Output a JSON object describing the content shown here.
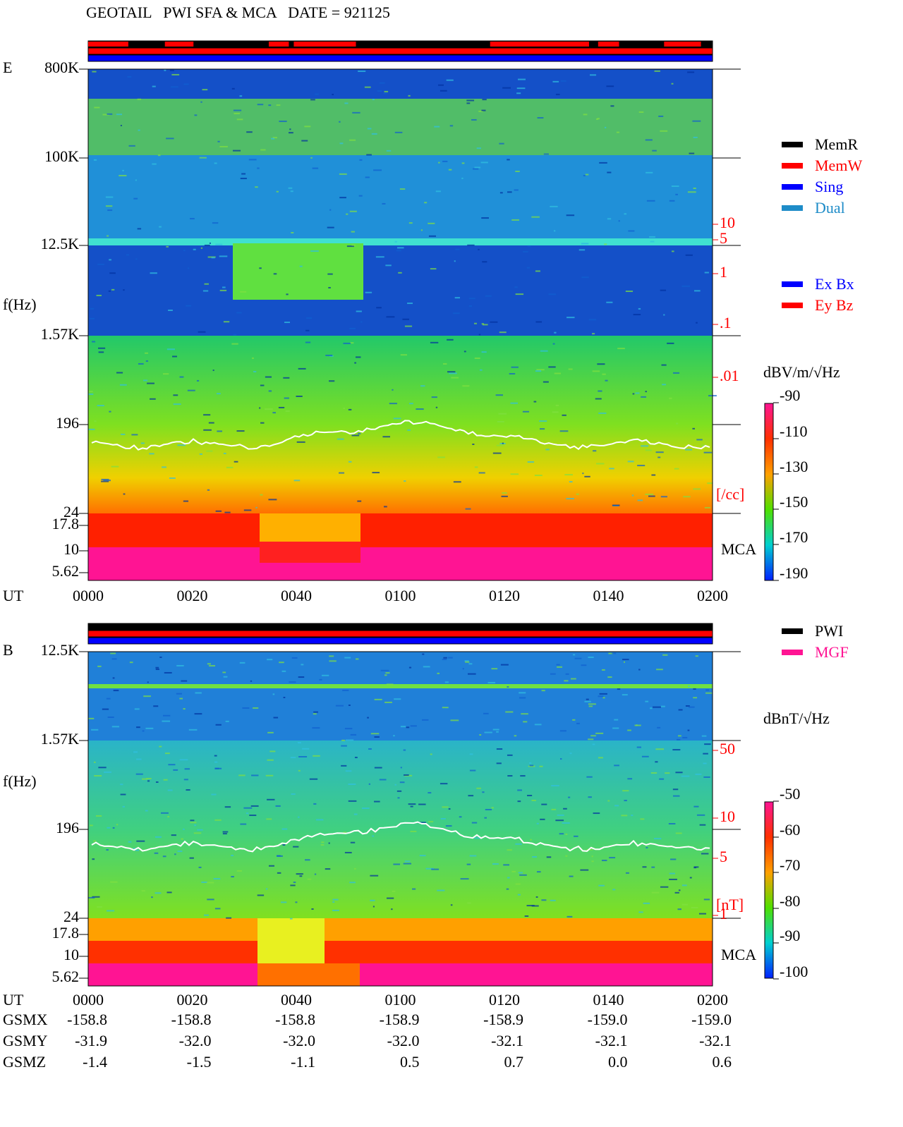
{
  "title": "GEOTAIL   PWI SFA & MCA   DATE = 921125",
  "panels": [
    {
      "label": "E",
      "ylabel": "f(Hz)",
      "time_label": "UT",
      "freq_ticks": [
        "800K",
        "100K",
        "12.5K",
        "1.57K",
        "196",
        "24",
        "17.8",
        "10",
        "5.62"
      ],
      "density_ticks": [
        "10",
        "5",
        "1",
        ".1",
        ".01"
      ],
      "density_unit": "[/cc]",
      "mca": "MCA",
      "legend": [
        {
          "name": "MemR",
          "color": "#000000"
        },
        {
          "name": "MemW",
          "color": "#ff0000"
        },
        {
          "name": "Sing",
          "color": "#0000ff"
        },
        {
          "name": "Dual",
          "color": "#1e8cc8"
        }
      ],
      "legend2": [
        {
          "name": "Ex Bx",
          "color": "#0000ff"
        },
        {
          "name": "Ey Bz",
          "color": "#ff0000"
        }
      ],
      "unit": "dBV/m/√Hz",
      "colorbar": [
        "-90",
        "-110",
        "-130",
        "-150",
        "-170",
        "-190"
      ],
      "times": [
        "0000",
        "0020",
        "0040",
        "0100",
        "0120",
        "0140",
        "0200"
      ]
    },
    {
      "label": "B",
      "ylabel": "f(Hz)",
      "time_label": "UT",
      "freq_ticks": [
        "12.5K",
        "1.57K",
        "196",
        "24",
        "17.8",
        "10",
        "5.62"
      ],
      "density_ticks": [
        "50",
        "10",
        "5",
        "1"
      ],
      "density_unit": "[nT]",
      "mca": "MCA",
      "legend": [
        {
          "name": "PWI",
          "color": "#000000"
        },
        {
          "name": "MGF",
          "color": "#ff1493"
        }
      ],
      "unit": "dBnT/√Hz",
      "colorbar": [
        "-50",
        "-60",
        "-70",
        "-80",
        "-90",
        "-100"
      ],
      "times": [
        "0000",
        "0020",
        "0040",
        "0100",
        "0120",
        "0140",
        "0200"
      ]
    }
  ],
  "orbit": {
    "labels": [
      "GSMX",
      "GSMY",
      "GSMZ"
    ],
    "rows": [
      [
        "-158.8",
        "-158.8",
        "-158.8",
        "-158.9",
        "-158.9",
        "-159.0",
        "-159.0"
      ],
      [
        "-31.9",
        "-32.0",
        "-32.0",
        "-32.0",
        "-32.1",
        "-32.1",
        "-32.1"
      ],
      [
        "-1.4",
        "-1.5",
        "-1.1",
        "0.5",
        "0.7",
        "0.0",
        "0.6"
      ]
    ]
  }
}
